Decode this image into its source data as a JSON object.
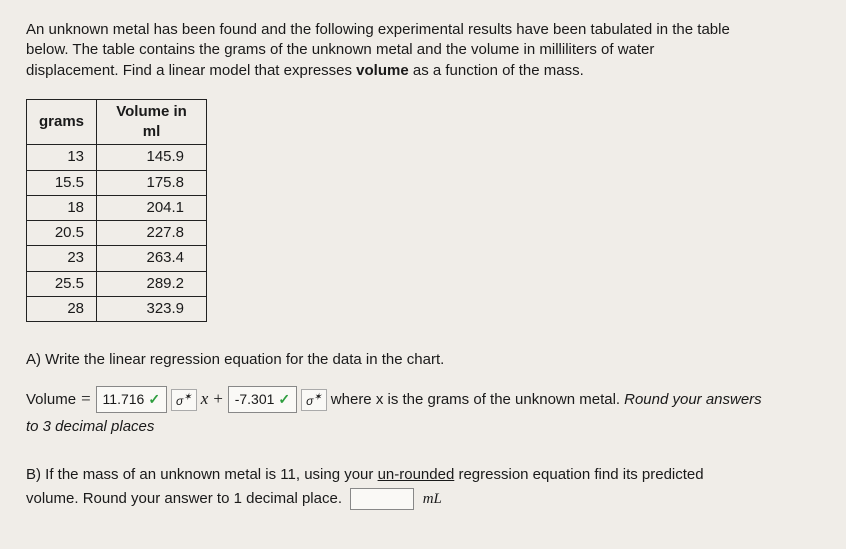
{
  "intro": {
    "line1": "An unknown metal has been found and the following experimental results have been tabulated in the table",
    "line2": "below. The table contains the grams of the unknown metal and the volume in milliliters of water",
    "line3": "displacement. Find a linear model that expresses ",
    "volumeWord": "volume",
    "line3b": " as a function of the mass."
  },
  "table": {
    "headers": [
      "grams",
      "Volume in ml"
    ],
    "rows": [
      [
        "13",
        "145.9"
      ],
      [
        "15.5",
        "175.8"
      ],
      [
        "18",
        "204.1"
      ],
      [
        "20.5",
        "227.8"
      ],
      [
        "23",
        "263.4"
      ],
      [
        "25.5",
        "289.2"
      ],
      [
        "28",
        "323.9"
      ]
    ]
  },
  "partA": {
    "question": "A) Write the linear regression equation for the data in the chart.",
    "volLabel": "Volume ",
    "equals": "=",
    "slope": "11.716",
    "x": "x",
    "plus": "+",
    "intercept": "-7.301",
    "tail": " where x is the grams of the unknown metal. ",
    "roundNote": "Round your answers",
    "roundNote2": "to 3 decimal places",
    "sigma": "σ"
  },
  "partB": {
    "line1a": "B)  If the mass of an unknown metal is 11, using your ",
    "unrounded": "un-rounded",
    "line1b": " regression equation find its predicted",
    "line2a": "volume.  Round your answer to 1 decimal place.",
    "unit": "mL"
  }
}
